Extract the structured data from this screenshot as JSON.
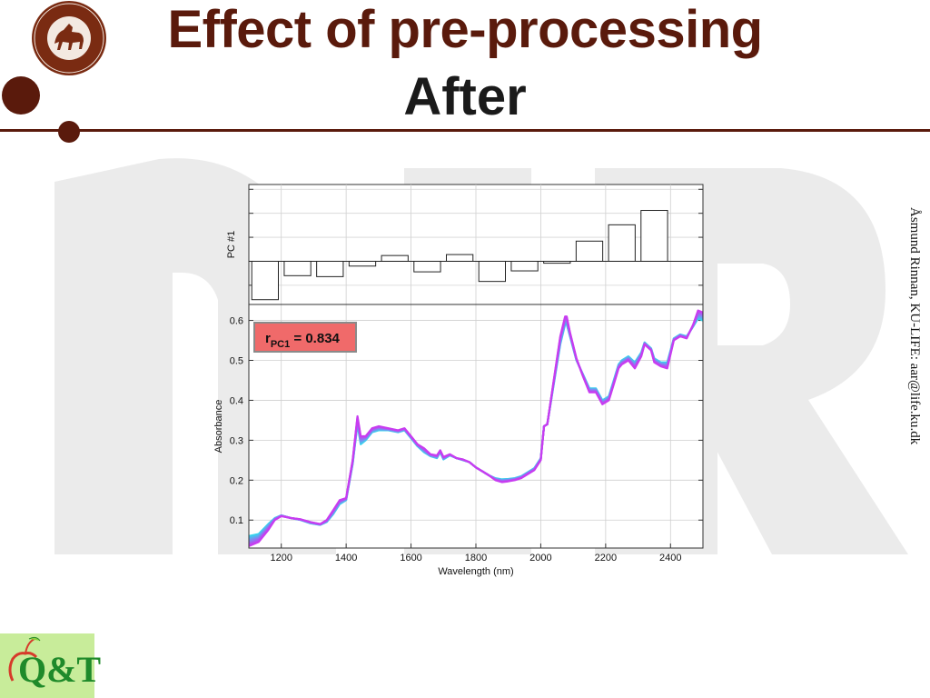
{
  "slide": {
    "title_line1": "Effect of pre-processing",
    "title_line2": "After",
    "watermark_text": "NIR",
    "side_credit": "Åsmund Rinnan, KU-LIFE: aar@life.ku.dk",
    "seal_text": "FACULTATIS · BIOLOGICÆ · SIGILLUM",
    "qt_logo_text": "Q&T"
  },
  "colors": {
    "brand_brown": "#5a1a0c",
    "watermark_grey": "#ebebeb",
    "label_box": "#f06a6a",
    "series_low": "#35d6ee",
    "series_high": "#c83cf0"
  },
  "chart_data": [
    {
      "type": "bar",
      "title": "",
      "ylabel": "PC #1",
      "xlabel": "",
      "x_centers": [
        1150,
        1250,
        1350,
        1450,
        1550,
        1650,
        1750,
        1850,
        1950,
        2050,
        2150,
        2250,
        2350
      ],
      "values": [
        -0.8,
        -0.3,
        -0.32,
        -0.1,
        0.12,
        -0.22,
        0.14,
        -0.42,
        -0.2,
        -0.04,
        0.42,
        0.76,
        1.06
      ],
      "ylim": [
        -0.9,
        1.6
      ],
      "grid": true
    },
    {
      "type": "line",
      "title": "",
      "xlabel": "Wavelength (nm)",
      "ylabel": "Absorbance",
      "xlim": [
        1100,
        2500
      ],
      "ylim": [
        0.03,
        0.64
      ],
      "xticks": [
        1200,
        1400,
        1600,
        1800,
        2000,
        2200,
        2400
      ],
      "yticks": [
        0.1,
        0.2,
        0.3,
        0.4,
        0.5,
        0.6
      ],
      "xtick_labels": [
        "1200",
        "1400",
        "1600",
        "1800",
        "2000",
        "2200",
        "2400"
      ],
      "ytick_labels": [
        "0.1",
        "0.2",
        "0.3",
        "0.4",
        "0.5",
        "0.6"
      ],
      "grid": true,
      "annotation": {
        "main": "r",
        "sub": "PC1",
        "rest": " = 0.834"
      },
      "x": [
        1100,
        1130,
        1160,
        1180,
        1200,
        1230,
        1260,
        1290,
        1320,
        1340,
        1360,
        1380,
        1400,
        1420,
        1435,
        1445,
        1460,
        1480,
        1500,
        1530,
        1560,
        1580,
        1600,
        1620,
        1640,
        1660,
        1680,
        1690,
        1700,
        1720,
        1740,
        1760,
        1780,
        1800,
        1820,
        1840,
        1860,
        1880,
        1900,
        1920,
        1940,
        1960,
        1980,
        2000,
        2010,
        2020,
        2040,
        2060,
        2075,
        2080,
        2090,
        2110,
        2130,
        2150,
        2170,
        2190,
        2210,
        2225,
        2240,
        2250,
        2270,
        2290,
        2310,
        2320,
        2340,
        2350,
        2370,
        2390,
        2410,
        2430,
        2450,
        2470,
        2485,
        2500
      ],
      "y_high": [
        0.035,
        0.045,
        0.075,
        0.1,
        0.11,
        0.105,
        0.102,
        0.095,
        0.09,
        0.1,
        0.125,
        0.15,
        0.155,
        0.25,
        0.36,
        0.31,
        0.31,
        0.33,
        0.335,
        0.33,
        0.325,
        0.33,
        0.31,
        0.29,
        0.28,
        0.265,
        0.262,
        0.275,
        0.258,
        0.265,
        0.255,
        0.252,
        0.245,
        0.232,
        0.222,
        0.212,
        0.2,
        0.195,
        0.197,
        0.2,
        0.205,
        0.215,
        0.225,
        0.25,
        0.335,
        0.34,
        0.45,
        0.56,
        0.61,
        0.61,
        0.57,
        0.505,
        0.46,
        0.42,
        0.42,
        0.39,
        0.4,
        0.44,
        0.48,
        0.49,
        0.5,
        0.48,
        0.51,
        0.54,
        0.525,
        0.495,
        0.485,
        0.48,
        0.55,
        0.56,
        0.555,
        0.59,
        0.625,
        0.62
      ],
      "y_low": [
        0.06,
        0.065,
        0.09,
        0.105,
        0.112,
        0.105,
        0.1,
        0.092,
        0.088,
        0.095,
        0.115,
        0.14,
        0.15,
        0.24,
        0.34,
        0.29,
        0.3,
        0.32,
        0.325,
        0.325,
        0.32,
        0.325,
        0.305,
        0.285,
        0.27,
        0.26,
        0.255,
        0.27,
        0.252,
        0.262,
        0.255,
        0.25,
        0.245,
        0.232,
        0.222,
        0.212,
        0.205,
        0.202,
        0.203,
        0.205,
        0.21,
        0.22,
        0.23,
        0.255,
        0.335,
        0.34,
        0.44,
        0.54,
        0.59,
        0.59,
        0.56,
        0.5,
        0.465,
        0.43,
        0.43,
        0.4,
        0.41,
        0.45,
        0.49,
        0.5,
        0.51,
        0.495,
        0.52,
        0.545,
        0.53,
        0.505,
        0.495,
        0.495,
        0.555,
        0.565,
        0.56,
        0.585,
        0.605,
        0.6
      ],
      "series_count": 8
    }
  ]
}
